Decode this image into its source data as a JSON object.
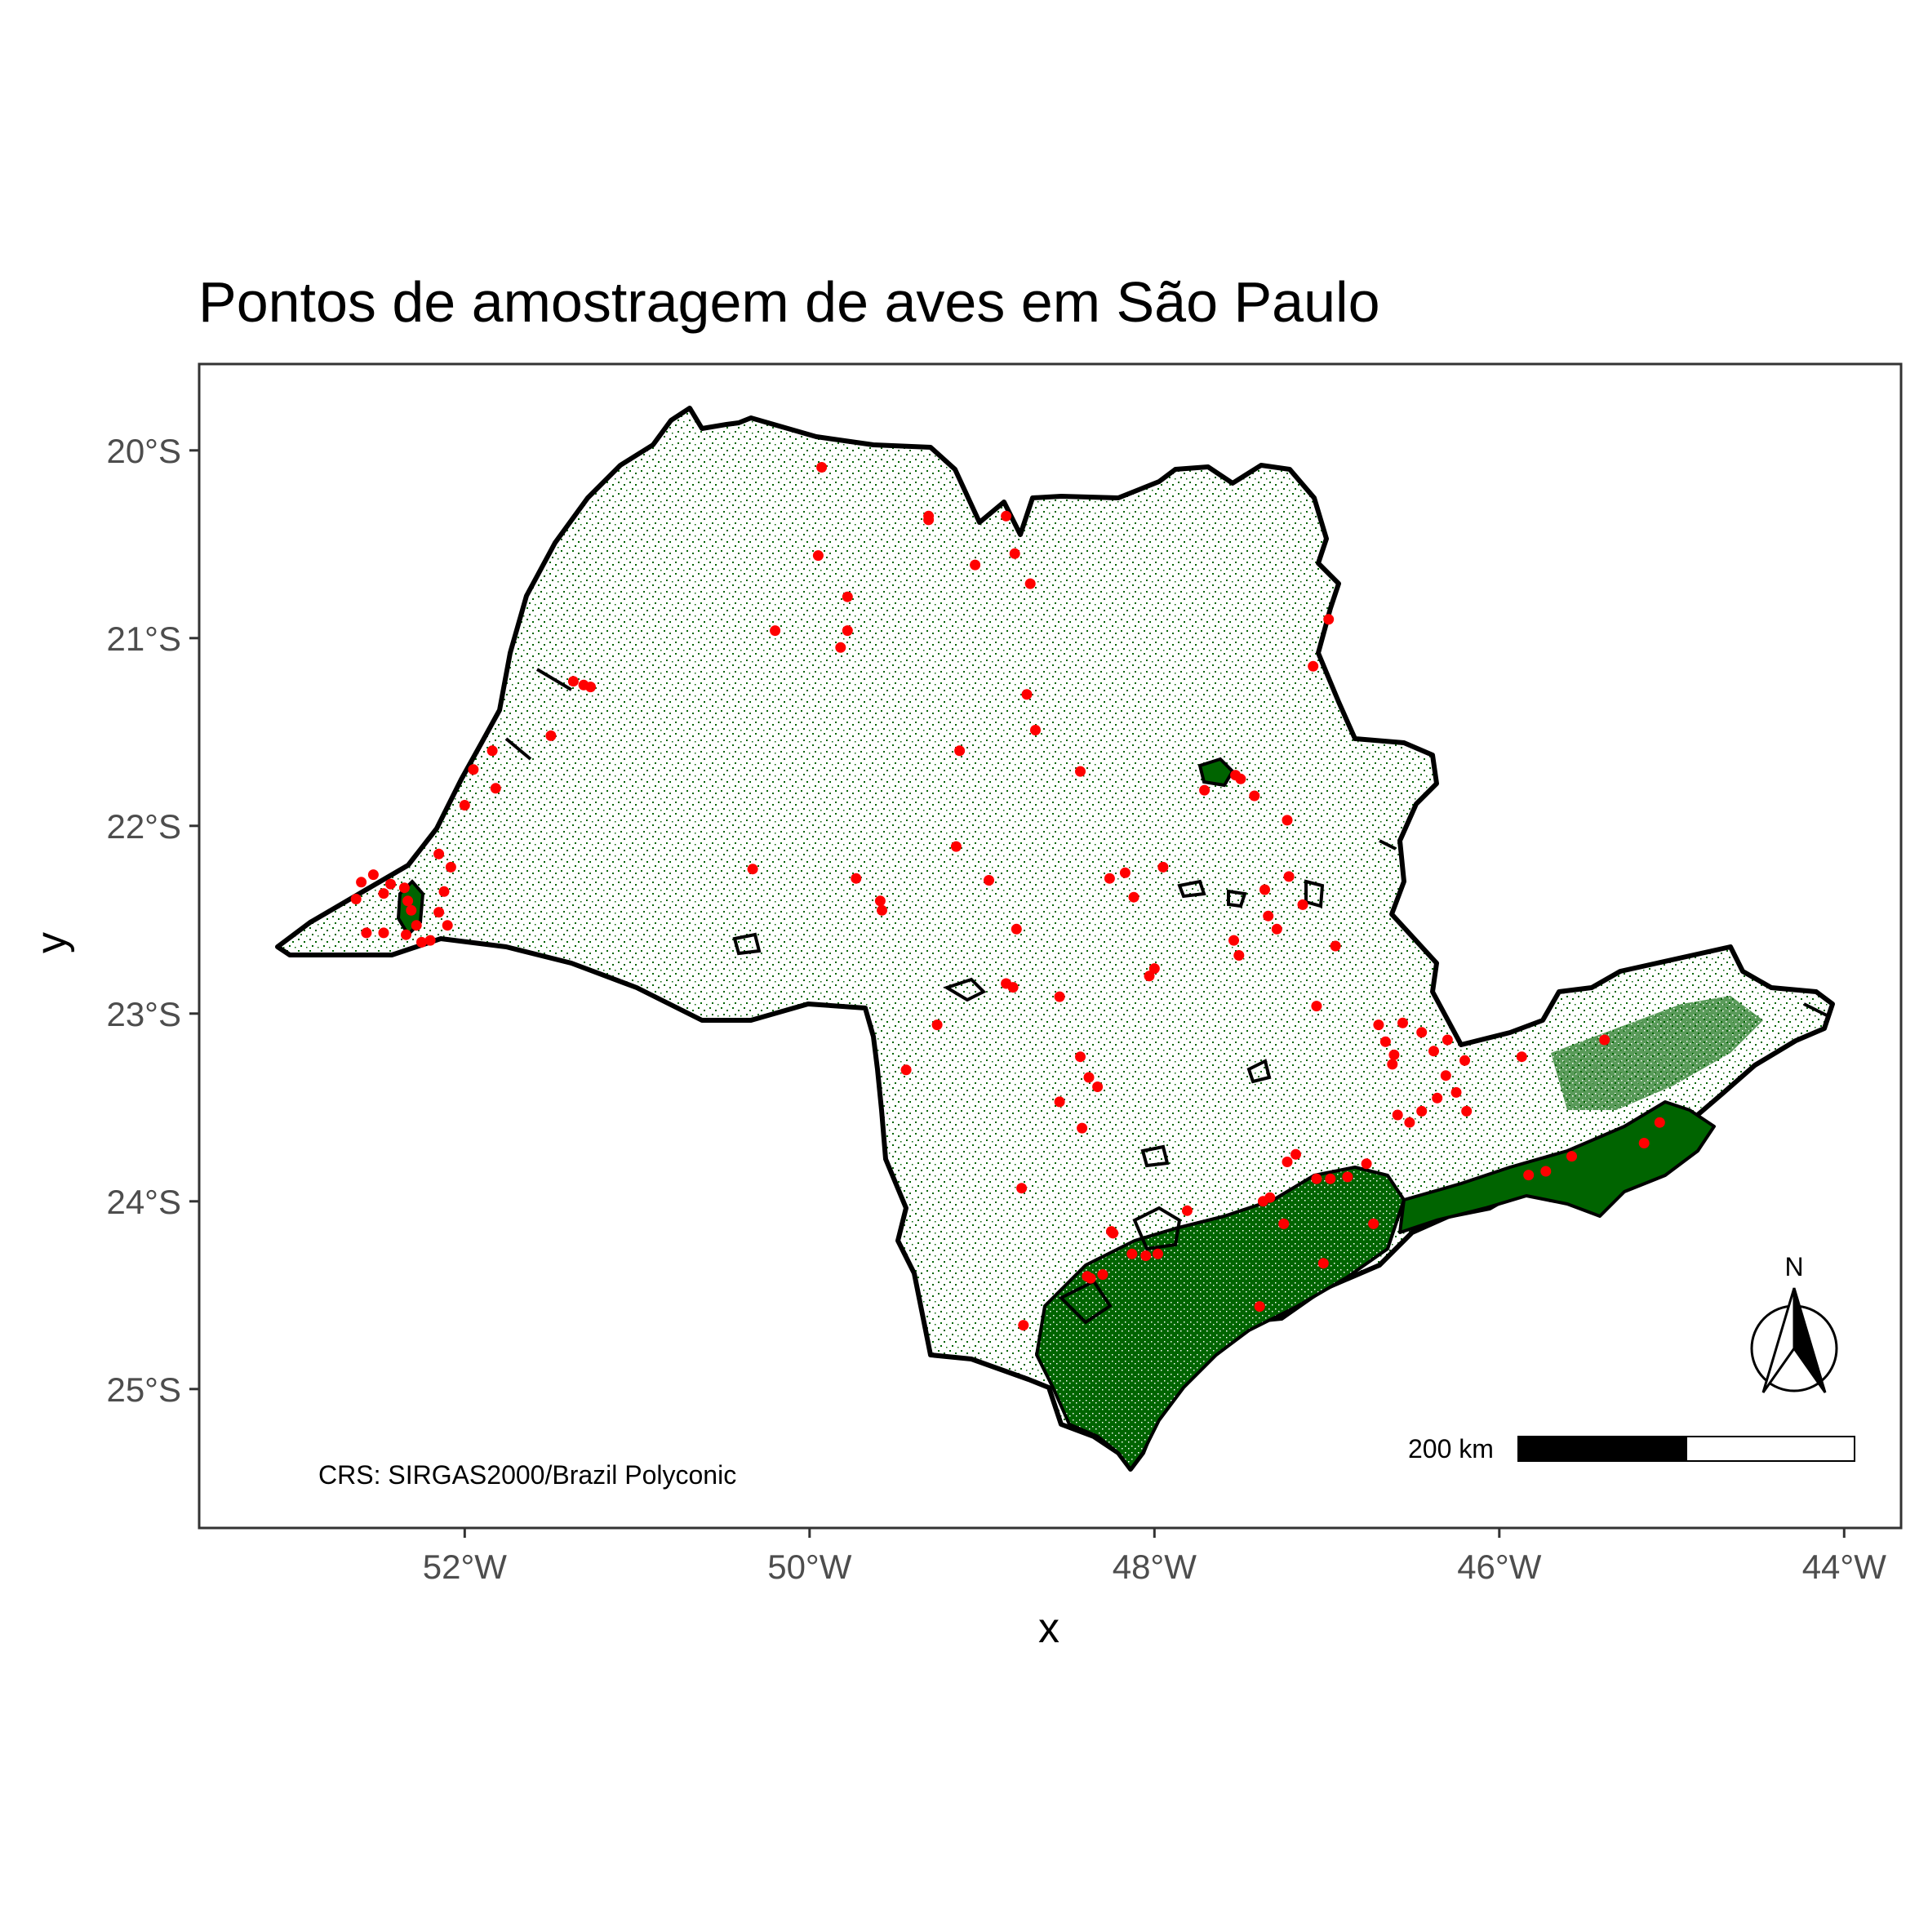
{
  "title": "Pontos de amostragem de aves em São Paulo",
  "xlabel": "x",
  "ylabel": "y",
  "x_ticks": [
    "52°W",
    "50°W",
    "48°W",
    "46°W",
    "44°W"
  ],
  "y_ticks": [
    "20°S",
    "21°S",
    "22°S",
    "23°S",
    "24°S",
    "25°S"
  ],
  "crs_note": "CRS: SIRGAS2000/Brazil Polyconic",
  "scale_bar_label": "200 km",
  "north_label": "N",
  "colors": {
    "forest": "#006400",
    "points": "#ff0000",
    "outline": "#000000",
    "land": "#ffffff"
  },
  "chart_data": {
    "type": "scatter",
    "title": "Pontos de amostragem de aves em São Paulo",
    "xlabel": "x",
    "ylabel": "y",
    "x_unit": "longitude (°E, negative = W)",
    "y_unit": "latitude (°N, negative = S)",
    "xlim": [
      -53.54,
      -43.67
    ],
    "ylim": [
      -25.74,
      -19.54
    ],
    "grid": false,
    "layers": [
      "state boundary",
      "forest cover",
      "protected areas",
      "sampling points"
    ],
    "points": [
      [
        -49.93,
        -20.09
      ],
      [
        -49.95,
        -20.56
      ],
      [
        -49.78,
        -20.78
      ],
      [
        -49.78,
        -20.96
      ],
      [
        -49.82,
        -21.05
      ],
      [
        -49.31,
        -20.37
      ],
      [
        -49.31,
        -20.35
      ],
      [
        -49.04,
        -20.61
      ],
      [
        -48.86,
        -20.35
      ],
      [
        -48.81,
        -20.55
      ],
      [
        -48.72,
        -20.71
      ],
      [
        -50.2,
        -20.96
      ],
      [
        -49.13,
        -21.6
      ],
      [
        -48.74,
        -21.3
      ],
      [
        -48.69,
        -21.49
      ],
      [
        -48.43,
        -21.71
      ],
      [
        -47.71,
        -21.81
      ],
      [
        -47.53,
        -21.73
      ],
      [
        -47.5,
        -21.75
      ],
      [
        -47.42,
        -21.84
      ],
      [
        -47.23,
        -21.97
      ],
      [
        -47.08,
        -21.15
      ],
      [
        -46.99,
        -20.9
      ],
      [
        -49.15,
        -22.11
      ],
      [
        -50.33,
        -22.23
      ],
      [
        -49.73,
        -22.28
      ],
      [
        -49.59,
        -22.4
      ],
      [
        -49.58,
        -22.45
      ],
      [
        -48.96,
        -22.29
      ],
      [
        -48.8,
        -22.55
      ],
      [
        -48.26,
        -22.28
      ],
      [
        -48.17,
        -22.25
      ],
      [
        -48.12,
        -22.38
      ],
      [
        -47.95,
        -22.22
      ],
      [
        -47.36,
        -22.34
      ],
      [
        -47.34,
        -22.48
      ],
      [
        -47.29,
        -22.55
      ],
      [
        -47.22,
        -22.27
      ],
      [
        -47.14,
        -22.42
      ],
      [
        -47.54,
        -22.61
      ],
      [
        -47.51,
        -22.69
      ],
      [
        -46.95,
        -22.64
      ],
      [
        -48.86,
        -22.84
      ],
      [
        -48.82,
        -22.86
      ],
      [
        -48.55,
        -22.91
      ],
      [
        -48.03,
        -22.8
      ],
      [
        -48.0,
        -22.76
      ],
      [
        -49.26,
        -23.06
      ],
      [
        -49.44,
        -23.3
      ],
      [
        -48.43,
        -23.23
      ],
      [
        -48.33,
        -23.39
      ],
      [
        -48.38,
        -23.34
      ],
      [
        -48.42,
        -23.61
      ],
      [
        -48.55,
        -23.47
      ],
      [
        -48.77,
        -23.93
      ],
      [
        -47.06,
        -22.96
      ],
      [
        -46.7,
        -23.06
      ],
      [
        -46.66,
        -23.15
      ],
      [
        -46.61,
        -23.22
      ],
      [
        -46.56,
        -23.05
      ],
      [
        -46.45,
        -23.1
      ],
      [
        -46.38,
        -23.2
      ],
      [
        -46.3,
        -23.14
      ],
      [
        -46.2,
        -23.25
      ],
      [
        -46.31,
        -23.33
      ],
      [
        -46.36,
        -23.45
      ],
      [
        -46.25,
        -23.42
      ],
      [
        -46.19,
        -23.52
      ],
      [
        -46.45,
        -23.52
      ],
      [
        -46.52,
        -23.58
      ],
      [
        -46.59,
        -23.54
      ],
      [
        -46.62,
        -23.27
      ],
      [
        -45.87,
        -23.23
      ],
      [
        -45.39,
        -23.14
      ],
      [
        -47.18,
        -23.75
      ],
      [
        -47.23,
        -23.79
      ],
      [
        -47.06,
        -23.88
      ],
      [
        -46.98,
        -23.88
      ],
      [
        -46.88,
        -23.87
      ],
      [
        -46.77,
        -23.8
      ],
      [
        -47.37,
        -24.0
      ],
      [
        -47.33,
        -23.98
      ],
      [
        -47.25,
        -24.12
      ],
      [
        -47.02,
        -24.33
      ],
      [
        -46.73,
        -24.12
      ],
      [
        -47.81,
        -24.05
      ],
      [
        -48.25,
        -24.16
      ],
      [
        -48.24,
        -24.17
      ],
      [
        -48.13,
        -24.28
      ],
      [
        -48.05,
        -24.29
      ],
      [
        -47.98,
        -24.28
      ],
      [
        -48.3,
        -24.39
      ],
      [
        -48.37,
        -24.41
      ],
      [
        -48.39,
        -24.4
      ],
      [
        -48.76,
        -24.66
      ],
      [
        -47.39,
        -24.56
      ],
      [
        -45.83,
        -23.86
      ],
      [
        -45.73,
        -23.84
      ],
      [
        -45.58,
        -23.76
      ],
      [
        -45.16,
        -23.69
      ],
      [
        -45.07,
        -23.58
      ],
      [
        -52.28,
        -22.53
      ],
      [
        -52.34,
        -22.58
      ],
      [
        -52.25,
        -22.62
      ],
      [
        -52.2,
        -22.61
      ],
      [
        -52.31,
        -22.45
      ],
      [
        -52.33,
        -22.4
      ],
      [
        -52.35,
        -22.33
      ],
      [
        -52.43,
        -22.31
      ],
      [
        -52.47,
        -22.36
      ],
      [
        -52.53,
        -22.26
      ],
      [
        -52.6,
        -22.3
      ],
      [
        -52.63,
        -22.39
      ],
      [
        -52.57,
        -22.57
      ],
      [
        -52.47,
        -22.57
      ],
      [
        -52.15,
        -22.15
      ],
      [
        -52.12,
        -22.35
      ],
      [
        -52.1,
        -22.53
      ],
      [
        -52.0,
        -21.89
      ],
      [
        -51.95,
        -21.7
      ],
      [
        -51.82,
        -21.8
      ],
      [
        -51.84,
        -21.6
      ],
      [
        -51.5,
        -21.52
      ],
      [
        -51.37,
        -21.23
      ],
      [
        -51.31,
        -21.25
      ],
      [
        -51.27,
        -21.26
      ],
      [
        -52.08,
        -22.22
      ],
      [
        -52.15,
        -22.46
      ]
    ]
  }
}
